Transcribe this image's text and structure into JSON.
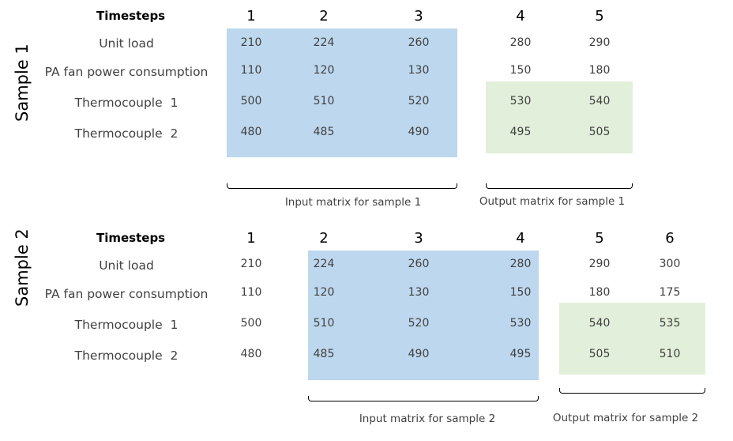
{
  "samples": [
    {
      "title": "Sample 1",
      "timesteps_label": "Timesteps",
      "steps": [
        "1",
        "2",
        "3",
        "4",
        "5"
      ],
      "rows": [
        {
          "label": "Unit load",
          "values": [
            "210",
            "224",
            "260",
            "280",
            "290"
          ]
        },
        {
          "label": "PA fan power consumption",
          "values": [
            "110",
            "120",
            "130",
            "150",
            "180"
          ]
        },
        {
          "label": "Thermocouple  1",
          "values": [
            "500",
            "510",
            "520",
            "530",
            "540"
          ]
        },
        {
          "label": "Thermocouple  2",
          "values": [
            "480",
            "485",
            "490",
            "495",
            "505"
          ]
        }
      ],
      "input_caption": "Input matrix for sample 1",
      "output_caption": "Output matrix for sample 1"
    },
    {
      "title": "Sample 2",
      "timesteps_label": "Timesteps",
      "steps": [
        "1",
        "2",
        "3",
        "4",
        "5",
        "6"
      ],
      "rows": [
        {
          "label": "Unit load",
          "values": [
            "210",
            "224",
            "260",
            "280",
            "290",
            "300"
          ]
        },
        {
          "label": "PA fan power consumption",
          "values": [
            "110",
            "120",
            "130",
            "150",
            "180",
            "175"
          ]
        },
        {
          "label": "Thermocouple  1",
          "values": [
            "500",
            "510",
            "520",
            "530",
            "540",
            "535"
          ]
        },
        {
          "label": "Thermocouple  2",
          "values": [
            "480",
            "485",
            "490",
            "495",
            "505",
            "510"
          ]
        }
      ],
      "input_caption": "Input matrix for sample 2",
      "output_caption": "Output matrix for sample 2"
    }
  ],
  "colors": {
    "input_matrix": "#bdd7ee",
    "output_matrix": "#e2efda"
  }
}
